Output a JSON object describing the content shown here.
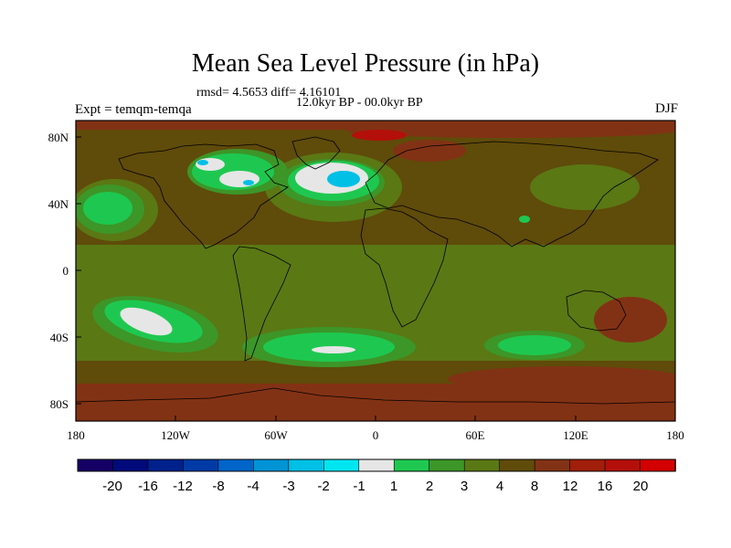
{
  "title": "Mean Sea Level Pressure (in hPa)",
  "stats": "rmsd= 4.5653 diff= 4.16101",
  "period": "12.0kyr BP - 00.0kyr BP",
  "experiment": "Expt = temqm-temqa",
  "season": "DJF",
  "axes": {
    "lon_ticks": [
      "180",
      "120W",
      "60W",
      "0",
      "60E",
      "120E",
      "180"
    ],
    "lat_ticks": [
      "80N",
      "40N",
      "0",
      "40S",
      "80S"
    ]
  },
  "colorbar": {
    "labels": [
      "-20",
      "-16",
      "-12",
      "-8",
      "-4",
      "-3",
      "-2",
      "-1",
      "1",
      "2",
      "3",
      "4",
      "8",
      "12",
      "16",
      "20"
    ],
    "colors": [
      "#140064",
      "#000a7a",
      "#00208c",
      "#003aa6",
      "#0064c8",
      "#0094d6",
      "#00c0e6",
      "#00e6f0",
      "#e6e6e6",
      "#1ec850",
      "#3c9628",
      "#5a7814",
      "#5f4b0a",
      "#823214",
      "#a01e0a",
      "#b40f0a",
      "#d20000"
    ]
  },
  "palette": {
    "base": "#5f4b0a",
    "olive": "#5a7814",
    "green_mid": "#3c9628",
    "green_bright": "#1ec850",
    "light": "#e6e6e6",
    "cyan": "#00c0e6",
    "red_brown": "#823214",
    "red": "#b40f0a"
  }
}
